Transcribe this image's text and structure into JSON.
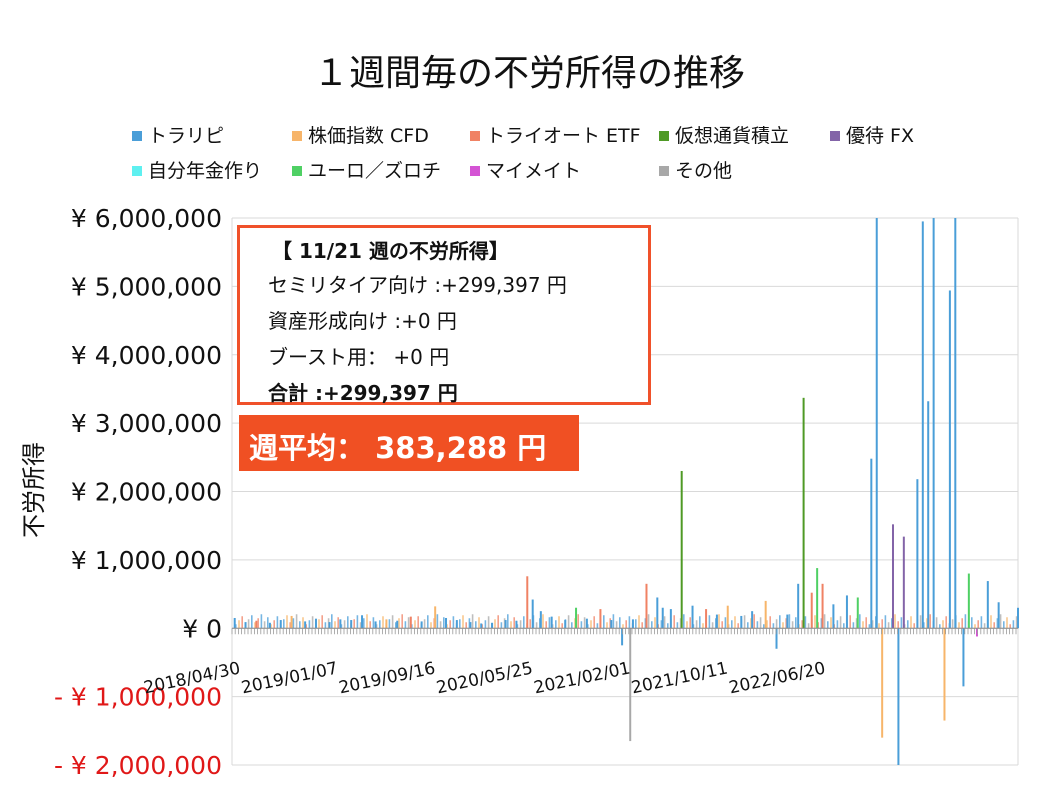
{
  "chart_data": {
    "type": "bar",
    "title": "１週間毎の不労所得の推移",
    "ylabel": "不労所得",
    "xlabel": "",
    "ylim": [
      -2000000,
      6000000
    ],
    "yticks": [
      {
        "value": 6000000,
        "label": "¥ 6,000,000",
        "negative": false
      },
      {
        "value": 5000000,
        "label": "¥ 5,000,000",
        "negative": false
      },
      {
        "value": 4000000,
        "label": "¥ 4,000,000",
        "negative": false
      },
      {
        "value": 3000000,
        "label": "¥ 3,000,000",
        "negative": false
      },
      {
        "value": 2000000,
        "label": "¥ 2,000,000",
        "negative": false
      },
      {
        "value": 1000000,
        "label": "¥ 1,000,000",
        "negative": false
      },
      {
        "value": 0,
        "label": "¥ 0",
        "negative": false
      },
      {
        "value": -1000000,
        "label": "- ¥ 1,000,000",
        "negative": true
      },
      {
        "value": -2000000,
        "label": "- ¥ 2,000,000",
        "negative": true
      }
    ],
    "xticks": [
      "2018/04/30",
      "2019/01/07",
      "2019/09/16",
      "2020/05/25",
      "2021/02/01",
      "2021/10/11",
      "2022/06/20"
    ],
    "x_start": "2018/04/30",
    "x_end": "2023/11/21",
    "legend_position": "top",
    "series": [
      {
        "name": "トラリピ",
        "color": "#4a9ed8"
      },
      {
        "name": "株価指数 CFD",
        "color": "#f7b56a"
      },
      {
        "name": "トライオート ETF",
        "color": "#f08264"
      },
      {
        "name": "仮想通貨積立",
        "color": "#4f9a25"
      },
      {
        "name": "優待 FX",
        "color": "#8364a8"
      },
      {
        "name": "自分年金作り",
        "color": "#5ef0f0"
      },
      {
        "name": "ユーロ／ズロチ",
        "color": "#4fd064"
      },
      {
        "name": "マイメイト",
        "color": "#d454d4"
      },
      {
        "name": "その他",
        "color": "#a8a8a8"
      }
    ],
    "bars": [
      {
        "date": "2018/05/07",
        "series": "トラリピ",
        "value": 150000
      },
      {
        "date": "2018/06/04",
        "series": "トラリピ",
        "value": 90000
      },
      {
        "date": "2018/07/02",
        "series": "トライオート ETF",
        "value": 110000
      },
      {
        "date": "2018/08/06",
        "series": "トラリピ",
        "value": 80000
      },
      {
        "date": "2018/09/03",
        "series": "トラリピ",
        "value": 120000
      },
      {
        "date": "2018/10/01",
        "series": "株価指数 CFD",
        "value": 180000
      },
      {
        "date": "2018/11/05",
        "series": "トラリピ",
        "value": 100000
      },
      {
        "date": "2018/12/03",
        "series": "トラリピ",
        "value": 140000
      },
      {
        "date": "2019/01/07",
        "series": "トラリピ",
        "value": 90000
      },
      {
        "date": "2019/02/04",
        "series": "トラリピ",
        "value": 130000
      },
      {
        "date": "2019/03/04",
        "series": "トラリピ",
        "value": 120000
      },
      {
        "date": "2019/04/01",
        "series": "トラリピ",
        "value": 190000
      },
      {
        "date": "2019/05/06",
        "series": "トラリピ",
        "value": 100000
      },
      {
        "date": "2019/06/03",
        "series": "株価指数 CFD",
        "value": 130000
      },
      {
        "date": "2019/07/01",
        "series": "トラリピ",
        "value": 110000
      },
      {
        "date": "2019/08/05",
        "series": "トライオート ETF",
        "value": 170000
      },
      {
        "date": "2019/09/02",
        "series": "トラリピ",
        "value": 100000
      },
      {
        "date": "2019/10/07",
        "series": "株価指数 CFD",
        "value": 320000
      },
      {
        "date": "2019/11/04",
        "series": "トラリピ",
        "value": 150000
      },
      {
        "date": "2019/12/02",
        "series": "トラリピ",
        "value": 120000
      },
      {
        "date": "2020/01/06",
        "series": "トラリピ",
        "value": 90000
      },
      {
        "date": "2020/02/03",
        "series": "トラリピ",
        "value": 70000
      },
      {
        "date": "2020/03/02",
        "series": "トラリピ",
        "value": 80000
      },
      {
        "date": "2020/04/06",
        "series": "トラリピ",
        "value": 120000
      },
      {
        "date": "2020/05/04",
        "series": "トラリピ",
        "value": 110000
      },
      {
        "date": "2020/06/01",
        "series": "トライオート ETF",
        "value": 760000
      },
      {
        "date": "2020/06/15",
        "series": "トラリピ",
        "value": 420000
      },
      {
        "date": "2020/07/06",
        "series": "トラリピ",
        "value": 250000
      },
      {
        "date": "2020/08/03",
        "series": "トラリピ",
        "value": 170000
      },
      {
        "date": "2020/09/07",
        "series": "トラリピ",
        "value": 120000
      },
      {
        "date": "2020/10/05",
        "series": "ユーロ／ズロチ",
        "value": 300000
      },
      {
        "date": "2020/11/02",
        "series": "トラリピ",
        "value": 140000
      },
      {
        "date": "2020/12/07",
        "series": "トライオート ETF",
        "value": 280000
      },
      {
        "date": "2021/01/04",
        "series": "トラリピ",
        "value": 120000
      },
      {
        "date": "2021/02/01",
        "series": "トラリピ",
        "value": -250000
      },
      {
        "date": "2021/02/22",
        "series": "その他",
        "value": -1650000
      },
      {
        "date": "2021/03/01",
        "series": "トラリピ",
        "value": 130000
      },
      {
        "date": "2021/04/05",
        "series": "トライオート ETF",
        "value": 650000
      },
      {
        "date": "2021/05/03",
        "series": "トラリピ",
        "value": 450000
      },
      {
        "date": "2021/05/17",
        "series": "トラリピ",
        "value": 300000
      },
      {
        "date": "2021/06/07",
        "series": "トラリピ",
        "value": 280000
      },
      {
        "date": "2021/07/05",
        "series": "仮想通貨積立",
        "value": 2300000
      },
      {
        "date": "2021/08/02",
        "series": "トラリピ",
        "value": 330000
      },
      {
        "date": "2021/09/06",
        "series": "トライオート ETF",
        "value": 280000
      },
      {
        "date": "2021/10/04",
        "series": "トラリピ",
        "value": 200000
      },
      {
        "date": "2021/11/01",
        "series": "株価指数 CFD",
        "value": 330000
      },
      {
        "date": "2021/12/06",
        "series": "トラリピ",
        "value": 180000
      },
      {
        "date": "2022/01/03",
        "series": "トラリピ",
        "value": 250000
      },
      {
        "date": "2022/02/07",
        "series": "株価指数 CFD",
        "value": 400000
      },
      {
        "date": "2022/03/07",
        "series": "トラリピ",
        "value": -300000
      },
      {
        "date": "2022/04/04",
        "series": "トラリピ",
        "value": 200000
      },
      {
        "date": "2022/05/02",
        "series": "トラリピ",
        "value": 650000
      },
      {
        "date": "2022/05/16",
        "series": "仮想通貨積立",
        "value": 3370000
      },
      {
        "date": "2022/06/06",
        "series": "トライオート ETF",
        "value": 520000
      },
      {
        "date": "2022/06/20",
        "series": "ユーロ／ズロチ",
        "value": 880000
      },
      {
        "date": "2022/07/04",
        "series": "トライオート ETF",
        "value": 650000
      },
      {
        "date": "2022/08/01",
        "series": "トラリピ",
        "value": 350000
      },
      {
        "date": "2022/09/05",
        "series": "トラリピ",
        "value": 480000
      },
      {
        "date": "2022/10/03",
        "series": "ユーロ／ズロチ",
        "value": 450000
      },
      {
        "date": "2022/11/07",
        "series": "トラリピ",
        "value": 2480000
      },
      {
        "date": "2022/11/21",
        "series": "トラリピ",
        "value": 6000000
      },
      {
        "date": "2022/12/05",
        "series": "株価指数 CFD",
        "value": -1600000
      },
      {
        "date": "2023/01/02",
        "series": "優待 FX",
        "value": 1520000
      },
      {
        "date": "2023/01/16",
        "series": "トラリピ",
        "value": -2000000
      },
      {
        "date": "2023/01/30",
        "series": "優待 FX",
        "value": 1340000
      },
      {
        "date": "2023/03/06",
        "series": "トラリピ",
        "value": 2180000
      },
      {
        "date": "2023/03/20",
        "series": "トラリピ",
        "value": 5950000
      },
      {
        "date": "2023/04/03",
        "series": "トラリピ",
        "value": 3320000
      },
      {
        "date": "2023/04/17",
        "series": "トラリピ",
        "value": 6000000
      },
      {
        "date": "2023/05/15",
        "series": "株価指数 CFD",
        "value": -1350000
      },
      {
        "date": "2023/05/29",
        "series": "トラリピ",
        "value": 4940000
      },
      {
        "date": "2023/06/12",
        "series": "トラリピ",
        "value": 6000000
      },
      {
        "date": "2023/07/03",
        "series": "トラリピ",
        "value": -850000
      },
      {
        "date": "2023/07/17",
        "series": "ユーロ／ズロチ",
        "value": 800000
      },
      {
        "date": "2023/08/07",
        "series": "マイメイト",
        "value": -120000
      },
      {
        "date": "2023/09/04",
        "series": "トラリピ",
        "value": 690000
      },
      {
        "date": "2023/10/02",
        "series": "トラリピ",
        "value": 380000
      },
      {
        "date": "2023/11/21",
        "series": "トラリピ",
        "value": 299397
      }
    ]
  },
  "info_box": {
    "heading": "【 11/21 週の不労所得】",
    "line1": "セミリタイア向け :+299,397 円",
    "line2": "資産形成向け :+0 円",
    "line3": "ブースト用： +0 円",
    "total": "合計 :+299,397 円"
  },
  "average": {
    "text": "週平均： 383,288 円"
  }
}
